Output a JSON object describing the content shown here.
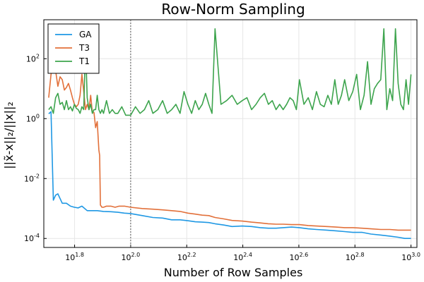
{
  "chart_data": {
    "type": "line",
    "title": "Row-Norm Sampling",
    "xlabel": "Number of Row Samples",
    "ylabel": "||x̃-x||₂/||x||₂",
    "x_scale": "log10",
    "y_scale": "log10",
    "xlim": [
      49.0,
      1050.0
    ],
    "ylim": [
      5.01e-05,
      2000.0
    ],
    "x_ticks": [
      {
        "value": 63.1,
        "base": "10",
        "exp": "1.8"
      },
      {
        "value": 100,
        "base": "10",
        "exp": "2.0"
      },
      {
        "value": 158.5,
        "base": "10",
        "exp": "2.2"
      },
      {
        "value": 251.2,
        "base": "10",
        "exp": "2.4"
      },
      {
        "value": 398.1,
        "base": "10",
        "exp": "2.6"
      },
      {
        "value": 631,
        "base": "10",
        "exp": "2.8"
      },
      {
        "value": 1000,
        "base": "10",
        "exp": "3.0"
      }
    ],
    "y_ticks": [
      {
        "value": 0.0001,
        "base": "10",
        "exp": "-4"
      },
      {
        "value": 0.01,
        "base": "10",
        "exp": "-2"
      },
      {
        "value": 1,
        "base": "10",
        "exp": "0"
      },
      {
        "value": 100,
        "base": "10",
        "exp": "2"
      }
    ],
    "vline_x": 100,
    "grid": true,
    "legend_position": "top-left",
    "series": [
      {
        "name": "GA",
        "color": "#1f98e4",
        "x": [
          51,
          52,
          53,
          54,
          55,
          57,
          59,
          61,
          63,
          65,
          67,
          70,
          73,
          76,
          80,
          85,
          90,
          95,
          100,
          110,
          120,
          130,
          140,
          150,
          160,
          170,
          180,
          190,
          200,
          215,
          230,
          250,
          270,
          290,
          310,
          330,
          350,
          375,
          400,
          430,
          460,
          500,
          540,
          580,
          620,
          670,
          720,
          780,
          840,
          900,
          950,
          1000
        ],
        "y": [
          1.45,
          1.7,
          0.0019,
          0.0028,
          0.0031,
          0.0015,
          0.0015,
          0.0012,
          0.0011,
          0.00105,
          0.0012,
          0.00085,
          0.00085,
          0.00085,
          0.0008,
          0.00078,
          0.00075,
          0.0007,
          0.00068,
          0.00058,
          0.0005,
          0.00048,
          0.00042,
          0.00042,
          0.00039,
          0.00036,
          0.00035,
          0.00034,
          0.00031,
          0.00028,
          0.00025,
          0.00026,
          0.00025,
          0.00023,
          0.00022,
          0.00022,
          0.00023,
          0.00024,
          0.00023,
          0.00021,
          0.0002,
          0.00019,
          0.00018,
          0.00017,
          0.00016,
          0.00016,
          0.00014,
          0.00013,
          0.00012,
          0.00011,
          0.0001,
          0.0001
        ]
      },
      {
        "name": "T3",
        "color": "#e2703a",
        "x": [
          51,
          52,
          53,
          54,
          55,
          56,
          57,
          58,
          59,
          60,
          61,
          62,
          63,
          64,
          65,
          66,
          67,
          68,
          69,
          70,
          71,
          72,
          73,
          74,
          75,
          76,
          77,
          77.5,
          78,
          79,
          80,
          82,
          85,
          88,
          91,
          95,
          100,
          110,
          120,
          130,
          140,
          150,
          160,
          170,
          180,
          190,
          200,
          215,
          230,
          250,
          270,
          290,
          310,
          330,
          350,
          375,
          400,
          430,
          460,
          500,
          540,
          580,
          620,
          670,
          720,
          780,
          840,
          900,
          950,
          1000
        ],
        "y": [
          5,
          30,
          60,
          40,
          12,
          25,
          20,
          9,
          11,
          15,
          9,
          5,
          3,
          2.5,
          3,
          6,
          30,
          8,
          2,
          3,
          2,
          6,
          1.6,
          1.6,
          0.5,
          0.8,
          0.09,
          0.06,
          0.0013,
          0.0011,
          0.0011,
          0.0012,
          0.0012,
          0.0011,
          0.0012,
          0.0012,
          0.0011,
          0.001,
          0.00095,
          0.0009,
          0.00085,
          0.0008,
          0.0007,
          0.00065,
          0.0006,
          0.00058,
          0.0005,
          0.00045,
          0.0004,
          0.00038,
          0.00035,
          0.00033,
          0.00031,
          0.0003,
          0.0003,
          0.00029,
          0.00029,
          0.00027,
          0.00026,
          0.00025,
          0.00024,
          0.00023,
          0.00023,
          0.00022,
          0.00021,
          0.0002,
          0.0002,
          0.00019,
          0.00019,
          0.00019
        ]
      },
      {
        "name": "T1",
        "color": "#3da44d",
        "x": [
          51,
          52,
          53,
          54,
          55,
          56,
          57,
          58,
          59,
          60,
          61,
          62,
          63,
          64,
          65,
          66,
          67,
          68,
          69,
          70,
          71,
          72,
          73,
          74,
          75,
          76,
          77,
          78,
          79,
          80,
          82,
          84,
          86,
          88,
          90,
          93,
          96,
          100,
          104,
          108,
          112,
          116,
          120,
          125,
          130,
          135,
          140,
          145,
          150,
          155,
          160,
          165,
          170,
          175,
          180,
          185,
          190,
          195,
          200,
          210,
          220,
          230,
          240,
          250,
          260,
          270,
          280,
          290,
          300,
          310,
          320,
          330,
          340,
          350,
          360,
          370,
          380,
          390,
          400,
          415,
          430,
          445,
          460,
          475,
          490,
          505,
          520,
          535,
          550,
          565,
          580,
          600,
          620,
          640,
          660,
          680,
          700,
          720,
          740,
          760,
          780,
          800,
          820,
          840,
          860,
          880,
          900,
          920,
          940,
          960,
          980,
          1000
        ],
        "y": [
          2,
          2.5,
          1.5,
          5,
          7,
          3,
          3.5,
          2,
          4,
          2,
          2.5,
          1.8,
          3,
          2.2,
          2,
          1.5,
          2.5,
          2,
          300,
          5,
          2,
          3,
          1.5,
          2,
          2,
          6,
          2,
          1.5,
          2,
          1.5,
          4,
          1.5,
          2,
          1.5,
          1.5,
          2.5,
          1.3,
          1.3,
          2.5,
          1.5,
          2,
          4,
          1.5,
          2,
          4,
          1.5,
          2,
          3,
          1.5,
          8,
          3,
          1.5,
          4,
          2,
          3,
          7,
          3,
          1.5,
          1000,
          3,
          4,
          6,
          3,
          4,
          5,
          2,
          3,
          5,
          7,
          3,
          4,
          2,
          3,
          2,
          3,
          5,
          4,
          2,
          20,
          3,
          5,
          2,
          8,
          3,
          2.5,
          6,
          3,
          20,
          3,
          6,
          20,
          4,
          8,
          30,
          2,
          6,
          80,
          3,
          10,
          15,
          20,
          1000,
          2,
          10,
          4,
          1000,
          15,
          3,
          2,
          20,
          3,
          30
        ]
      }
    ]
  }
}
